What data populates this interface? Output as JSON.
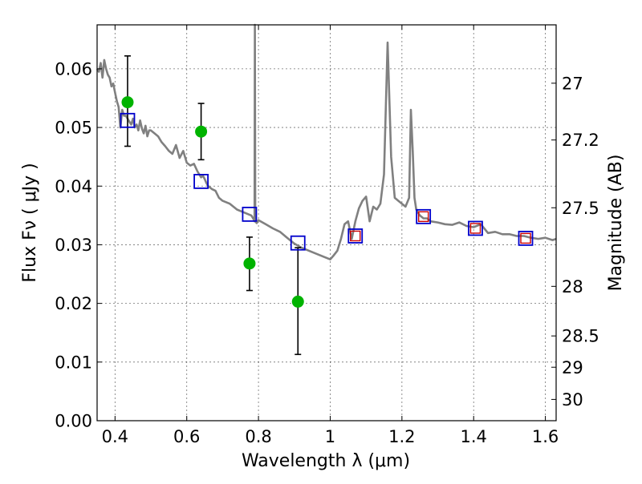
{
  "chart_data": {
    "type": "scatter",
    "xlim": [
      0.35,
      1.63
    ],
    "ylim": [
      0.0,
      0.0675
    ],
    "xlabel": "Wavelength  λ (μm)",
    "ylabel": "Flux  Fν  ( μJy )",
    "ylabel_right": "Magnitude (AB)",
    "grid": true,
    "x_ticks": [
      0.4,
      0.6,
      0.8,
      1.0,
      1.2,
      1.4,
      1.6
    ],
    "x_tick_labels": [
      "0.4",
      "0.6",
      "0.8",
      "1",
      "1.2",
      "1.4",
      "1.6"
    ],
    "y_ticks": [
      0.0,
      0.01,
      0.02,
      0.03,
      0.04,
      0.05,
      0.06
    ],
    "y_tick_labels": [
      "0.00",
      "0.01",
      "0.02",
      "0.03",
      "0.04",
      "0.05",
      "0.06"
    ],
    "mag_ticks": [
      27,
      27.2,
      27.5,
      28,
      28.5,
      29,
      30
    ],
    "mag_tick_labels": [
      "27",
      "27.2",
      "27.5",
      "28",
      "28.5",
      "29",
      "30"
    ],
    "colors": {
      "model": "#808080",
      "observed": "#00b300",
      "model_box": "#0000cc",
      "model_box_inner": "#cc0000",
      "errorbar": "#000000"
    },
    "series": [
      {
        "kind": "line",
        "x": [
          0.35,
          0.355,
          0.36,
          0.365,
          0.37,
          0.375,
          0.38,
          0.385,
          0.39,
          0.395,
          0.4,
          0.405,
          0.41,
          0.415,
          0.42,
          0.425,
          0.43,
          0.435,
          0.44,
          0.445,
          0.45,
          0.455,
          0.46,
          0.465,
          0.47,
          0.475,
          0.48,
          0.485,
          0.49,
          0.495,
          0.5,
          0.51,
          0.52,
          0.53,
          0.54,
          0.55,
          0.56,
          0.57,
          0.58,
          0.59,
          0.6,
          0.61,
          0.62,
          0.63,
          0.64,
          0.645,
          0.65,
          0.655,
          0.66,
          0.67,
          0.68,
          0.69,
          0.7,
          0.72,
          0.74,
          0.76,
          0.78,
          0.785,
          0.789,
          0.79,
          0.791,
          0.795,
          0.8,
          0.82,
          0.84,
          0.86,
          0.88,
          0.9,
          0.92,
          0.94,
          0.96,
          0.98,
          1.0,
          1.01,
          1.02,
          1.03,
          1.04,
          1.05,
          1.06,
          1.07,
          1.08,
          1.09,
          1.1,
          1.11,
          1.12,
          1.13,
          1.14,
          1.15,
          1.16,
          1.17,
          1.18,
          1.19,
          1.2,
          1.21,
          1.22,
          1.225,
          1.23,
          1.235,
          1.24,
          1.25,
          1.26,
          1.27,
          1.28,
          1.3,
          1.32,
          1.34,
          1.36,
          1.38,
          1.4,
          1.42,
          1.44,
          1.46,
          1.48,
          1.5,
          1.52,
          1.54,
          1.56,
          1.58,
          1.6,
          1.62,
          1.63
        ],
        "y": [
          0.06,
          0.0595,
          0.061,
          0.0585,
          0.0615,
          0.06,
          0.059,
          0.0585,
          0.057,
          0.0575,
          0.056,
          0.0545,
          0.0535,
          0.05,
          0.053,
          0.052,
          0.052,
          0.0515,
          0.051,
          0.0505,
          0.0515,
          0.05,
          0.0505,
          0.0495,
          0.0512,
          0.0498,
          0.049,
          0.0503,
          0.0485,
          0.0495,
          0.0495,
          0.049,
          0.0485,
          0.0475,
          0.0468,
          0.046,
          0.0455,
          0.047,
          0.0448,
          0.046,
          0.044,
          0.0435,
          0.0438,
          0.0425,
          0.0415,
          0.0418,
          0.0412,
          0.0405,
          0.04,
          0.0395,
          0.0392,
          0.038,
          0.0375,
          0.037,
          0.036,
          0.0355,
          0.035,
          0.0345,
          0.034,
          0.0675,
          0.034,
          0.0337,
          0.0342,
          0.0335,
          0.0328,
          0.0322,
          0.0312,
          0.0302,
          0.0295,
          0.029,
          0.0285,
          0.028,
          0.0275,
          0.0282,
          0.029,
          0.031,
          0.0335,
          0.034,
          0.031,
          0.034,
          0.0362,
          0.0375,
          0.0382,
          0.034,
          0.0365,
          0.036,
          0.037,
          0.042,
          0.0645,
          0.045,
          0.038,
          0.0375,
          0.037,
          0.0365,
          0.038,
          0.053,
          0.046,
          0.038,
          0.036,
          0.035,
          0.0345,
          0.0345,
          0.034,
          0.0338,
          0.0335,
          0.0334,
          0.0338,
          0.0332,
          0.033,
          0.0335,
          0.032,
          0.0322,
          0.0318,
          0.0318,
          0.0315,
          0.0315,
          0.0312,
          0.031,
          0.0312,
          0.0308,
          0.031
        ]
      },
      {
        "kind": "model_boxes",
        "x": [
          0.435,
          0.64,
          0.775,
          0.91,
          1.07,
          1.26,
          1.405,
          1.545
        ],
        "y": [
          0.0512,
          0.0408,
          0.0352,
          0.0303,
          0.0315,
          0.0348,
          0.0328,
          0.0311
        ],
        "inner_box_indices": [
          4,
          5,
          6,
          7
        ]
      },
      {
        "kind": "observed_points",
        "x": [
          0.435,
          0.64,
          0.775,
          0.91
        ],
        "y": [
          0.0543,
          0.0493,
          0.0268,
          0.0203
        ],
        "err_low": [
          0.0468,
          0.0445,
          0.0222,
          0.0113
        ],
        "err_high": [
          0.0622,
          0.0541,
          0.0313,
          0.0295
        ]
      }
    ]
  }
}
